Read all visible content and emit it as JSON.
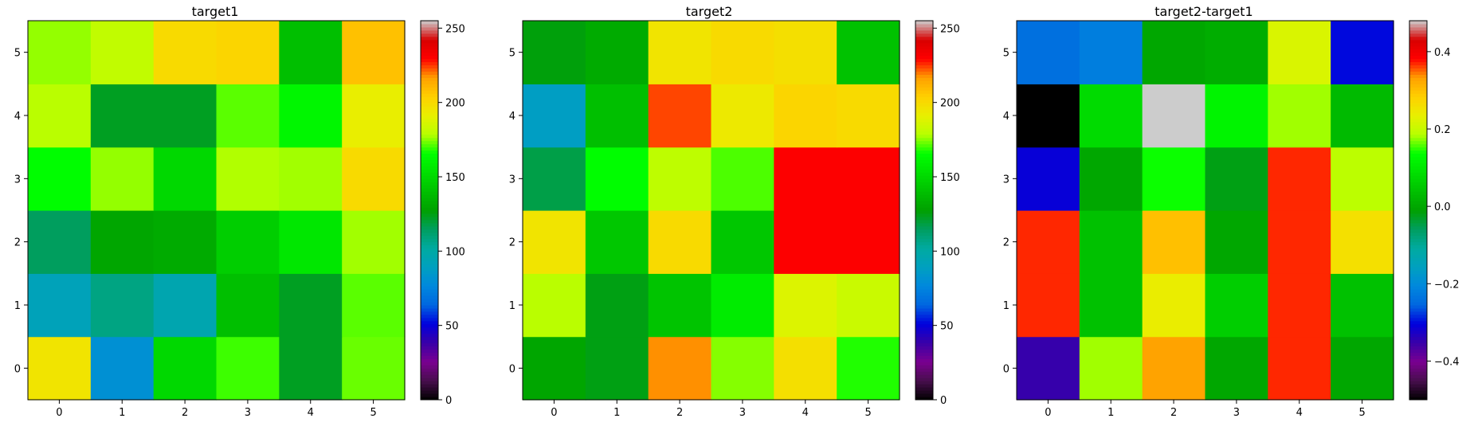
{
  "chart_data": [
    {
      "type": "heatmap",
      "title": "target1",
      "x_ticks": [
        "0",
        "1",
        "2",
        "3",
        "4",
        "5"
      ],
      "y_ticks": [
        "0",
        "1",
        "2",
        "3",
        "4",
        "5"
      ],
      "colorbar_ticks": [
        "0",
        "50",
        "100",
        "150",
        "200",
        "250"
      ],
      "colorbar_range": [
        0,
        255
      ],
      "values": [
        [
          196,
          81,
          150,
          170,
          123,
          173
        ],
        [
          92,
          108,
          96,
          140,
          123,
          172
        ],
        [
          115,
          130,
          132,
          146,
          156,
          177
        ],
        [
          165,
          176,
          150,
          178,
          177,
          200
        ],
        [
          179,
          123,
          123,
          172,
          162,
          192
        ],
        [
          176,
          181,
          200,
          202,
          140,
          208
        ]
      ]
    },
    {
      "type": "heatmap",
      "title": "target2",
      "x_ticks": [
        "0",
        "1",
        "2",
        "3",
        "4",
        "5"
      ],
      "y_ticks": [
        "0",
        "1",
        "2",
        "3",
        "4",
        "5"
      ],
      "colorbar_ticks": [
        "0",
        "50",
        "100",
        "150",
        "200",
        "250"
      ],
      "colorbar_range": [
        0,
        255
      ],
      "values": [
        [
          130,
          125,
          218,
          175,
          198,
          168
        ],
        [
          179,
          125,
          142,
          158,
          188,
          183
        ],
        [
          196,
          143,
          200,
          143,
          230,
          230
        ],
        [
          118,
          165,
          180,
          171,
          230,
          230
        ],
        [
          88,
          140,
          224,
          194,
          202,
          200
        ],
        [
          126,
          132,
          196,
          200,
          198,
          141
        ]
      ]
    },
    {
      "type": "heatmap",
      "title": "target2-target1",
      "x_ticks": [
        "0",
        "1",
        "2",
        "3",
        "4",
        "5"
      ],
      "y_ticks": [
        "0",
        "1",
        "2",
        "3",
        "4",
        "5"
      ],
      "colorbar_ticks": [
        "−0.4",
        "−0.2",
        "0.0",
        "0.2",
        "0.4"
      ],
      "colorbar_tick_values": [
        -0.4,
        -0.2,
        0.0,
        0.2,
        0.4
      ],
      "colorbar_range": [
        -0.5,
        0.48
      ],
      "values": [
        [
          -0.35,
          0.18,
          0.33,
          0.0,
          0.37,
          0.0
        ],
        [
          0.37,
          0.04,
          0.24,
          0.06,
          0.37,
          0.04
        ],
        [
          0.37,
          0.04,
          0.3,
          0.0,
          0.37,
          0.26
        ],
        [
          -0.31,
          0.0,
          0.14,
          -0.02,
          0.37,
          0.19
        ],
        [
          -0.5,
          0.08,
          0.48,
          0.12,
          0.18,
          0.03
        ],
        [
          -0.24,
          -0.22,
          0.0,
          0.01,
          0.22,
          -0.3
        ]
      ]
    }
  ]
}
